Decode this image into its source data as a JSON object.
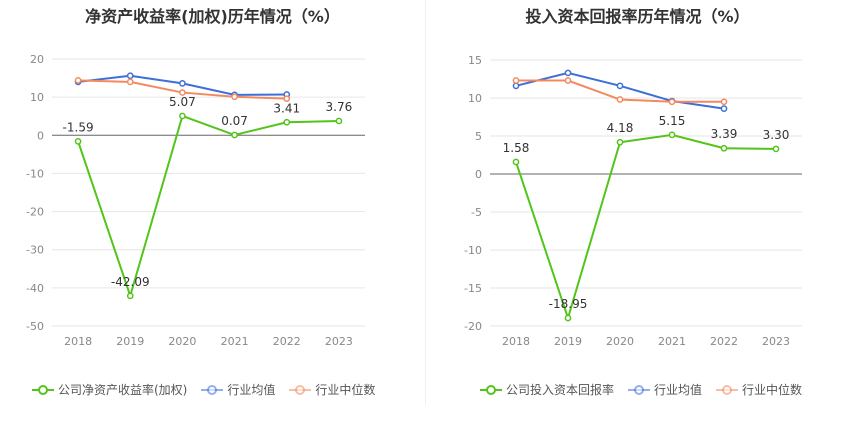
{
  "chart_data": [
    {
      "type": "line",
      "title": "净资产收益率(加权)历年情况（%）",
      "categories": [
        "2018",
        "2019",
        "2020",
        "2021",
        "2022",
        "2023"
      ],
      "ylim": [
        -50,
        20
      ],
      "yticks": [
        "20",
        "10",
        "0",
        "-10",
        "-20",
        "-30",
        "-40",
        "-50"
      ],
      "grid": true,
      "legend_position": "bottom-left",
      "series": [
        {
          "name": "公司净资产收益率(加权)",
          "color": "#52c41a",
          "values": [
            -1.59,
            -42.09,
            5.07,
            0.07,
            3.41,
            3.76
          ],
          "labels": [
            "-1.59",
            "-42.09",
            "5.07",
            "0.07",
            "3.41",
            "3.76"
          ]
        },
        {
          "name": "行业均值",
          "color": "#3d6fd8",
          "values": [
            14.0,
            15.6,
            13.6,
            10.6,
            10.7,
            null
          ]
        },
        {
          "name": "行业中位数",
          "color": "#f4895f",
          "values": [
            14.4,
            14.0,
            11.2,
            10.1,
            9.6,
            null
          ]
        }
      ]
    },
    {
      "type": "line",
      "title": "投入资本回报率历年情况（%）",
      "categories": [
        "2018",
        "2019",
        "2020",
        "2021",
        "2022",
        "2023"
      ],
      "ylim": [
        -20,
        15
      ],
      "yticks": [
        "15",
        "10",
        "5",
        "0",
        "-5",
        "-10",
        "-15",
        "-20"
      ],
      "grid": true,
      "legend_position": "bottom-left",
      "series": [
        {
          "name": "公司投入资本回报率",
          "color": "#52c41a",
          "values": [
            1.58,
            -18.95,
            4.18,
            5.15,
            3.39,
            3.3
          ],
          "labels": [
            "1.58",
            "-18.95",
            "4.18",
            "5.15",
            "3.39",
            "3.30"
          ]
        },
        {
          "name": "行业均值",
          "color": "#3d6fd8",
          "values": [
            11.6,
            13.3,
            11.6,
            9.6,
            8.6,
            null
          ]
        },
        {
          "name": "行业中位数",
          "color": "#f4895f",
          "values": [
            12.3,
            12.3,
            9.8,
            9.5,
            9.5,
            null
          ]
        }
      ]
    }
  ]
}
